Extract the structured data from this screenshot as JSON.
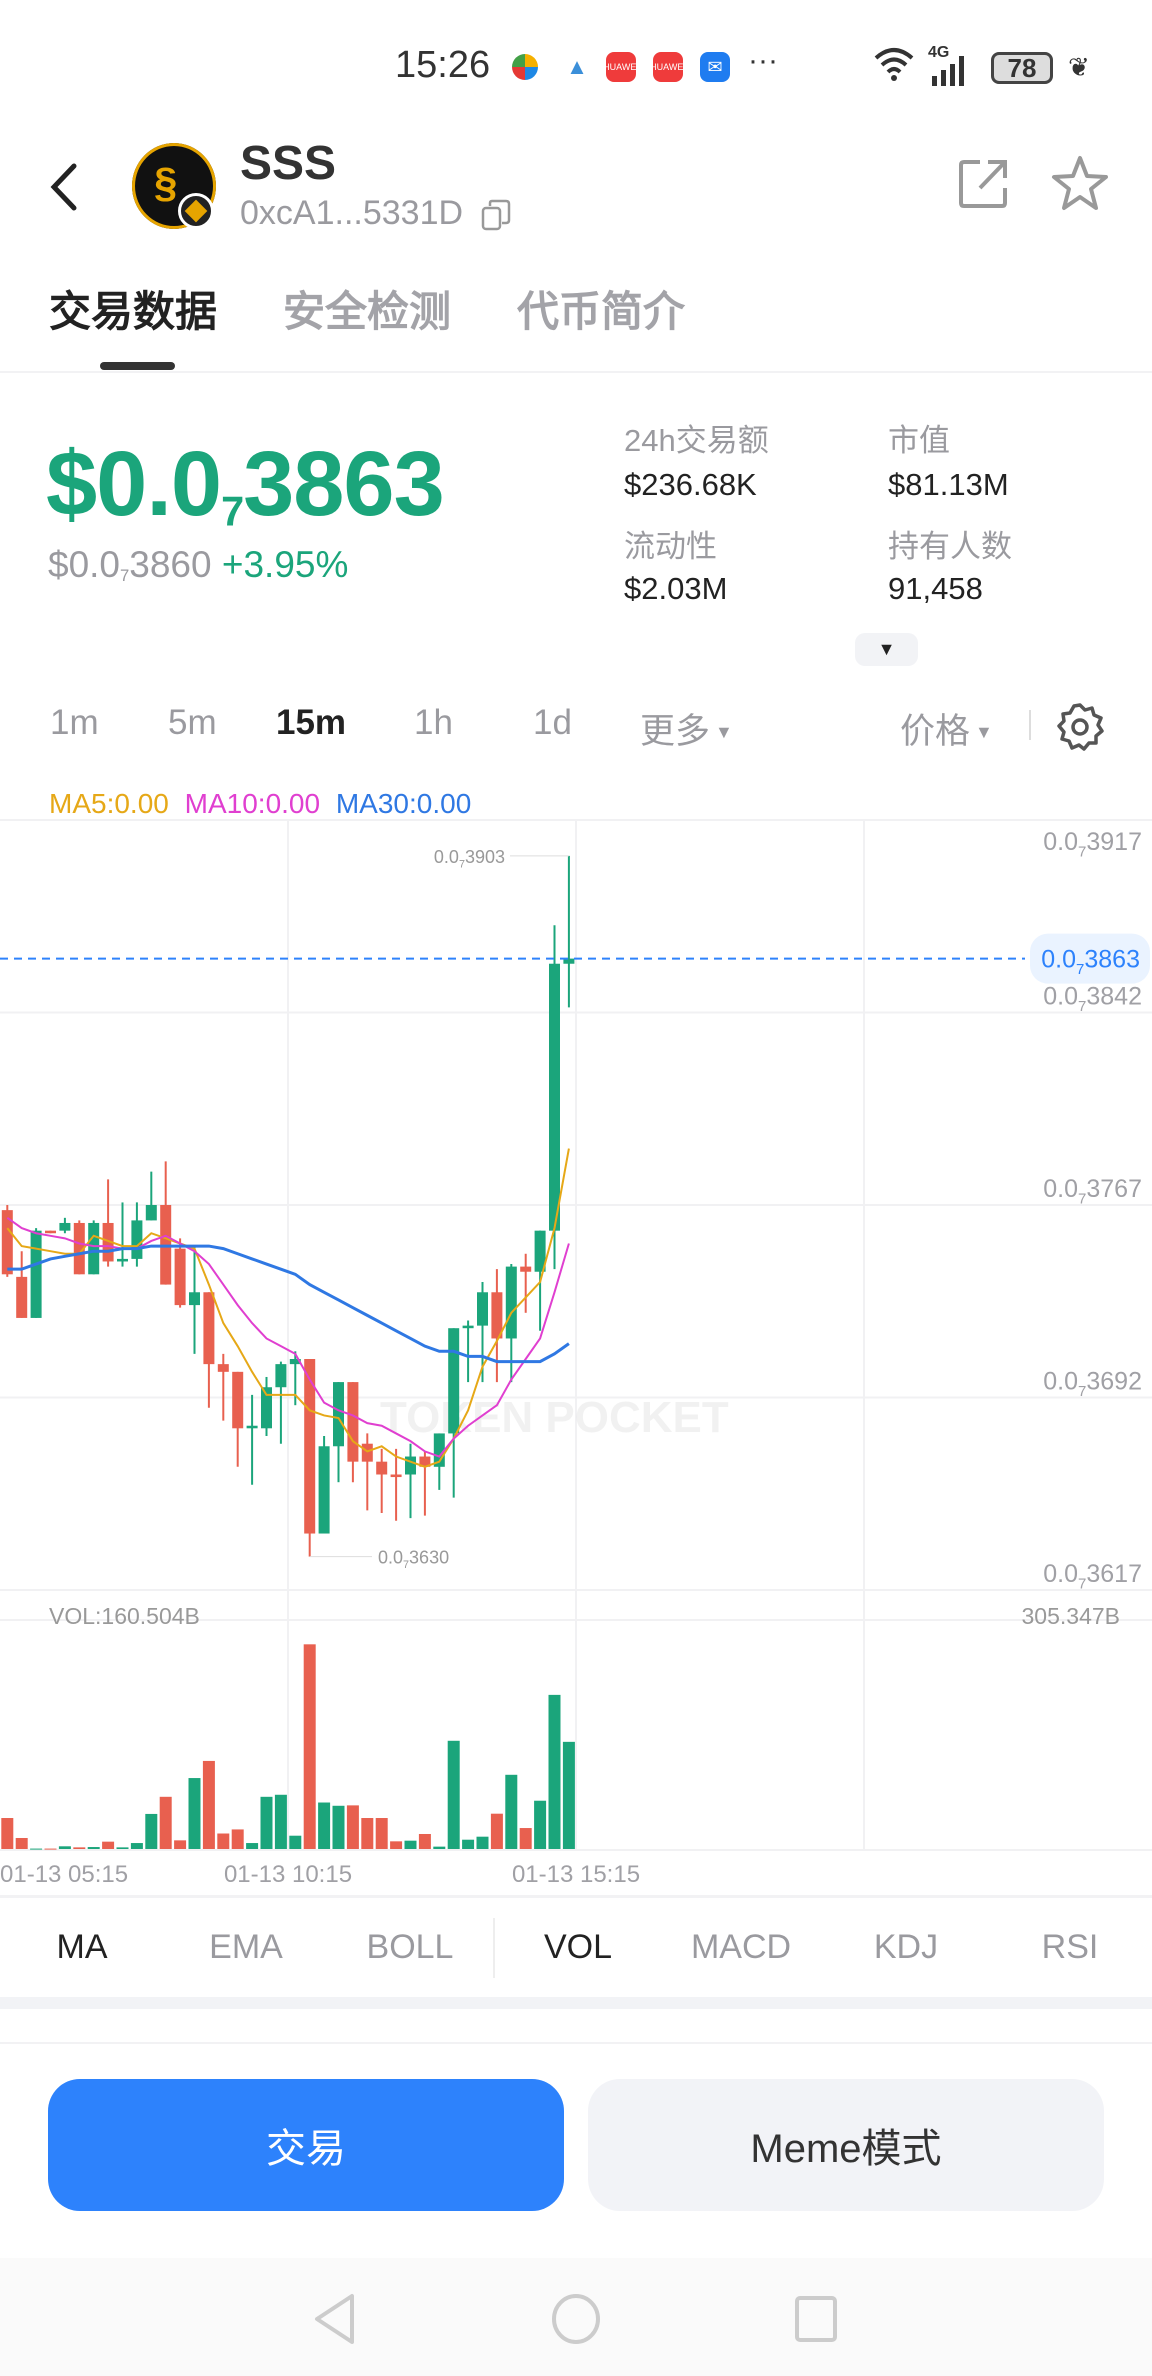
{
  "status_bar": {
    "time": "15:26",
    "network": "4G",
    "battery": "78",
    "more": "···",
    "notif_icons": [
      "multicolor-app-icon",
      "delta-app-icon",
      "huawei-appgallery-icon",
      "huawei-appgallery-icon",
      "mail-icon"
    ],
    "huawei_label": "HUAWEI"
  },
  "header": {
    "token_name": "SSS",
    "address": "0xcA1...5331D"
  },
  "tabs": [
    {
      "label": "交易数据",
      "active": true
    },
    {
      "label": "安全检测"
    },
    {
      "label": "代币简介"
    }
  ],
  "price": {
    "prefix": "$0.0",
    "zeros": "7",
    "digits": "3863",
    "ref_prefix": "$0.0",
    "ref_zeros": "7",
    "ref_digits": "3860",
    "change": "+3.95%"
  },
  "stats": [
    {
      "label": "24h交易额",
      "value": "$236.68K"
    },
    {
      "label": "市值",
      "value": "$81.13M"
    },
    {
      "label": "流动性",
      "value": "$2.03M"
    },
    {
      "label": "持有人数",
      "value": "91,458"
    }
  ],
  "intervals": [
    {
      "label": "1m"
    },
    {
      "label": "5m"
    },
    {
      "label": "15m",
      "active": true
    },
    {
      "label": "1h"
    },
    {
      "label": "1d"
    },
    {
      "label": "更多"
    }
  ],
  "price_mode": "价格",
  "ma_legend": {
    "ma5": "MA5:0.00",
    "ma10": "MA10:0.00",
    "ma30": "MA30:0.00"
  },
  "colors": {
    "up": "#1ba57b",
    "down": "#e8604f",
    "accent": "#2d82fc",
    "ma5": "#e6a817",
    "ma10": "#e03fd0",
    "ma30": "#2f78e3"
  },
  "chart_data": {
    "type": "candlestick",
    "ylim": [
      3.617e-08,
      3.917e-08
    ],
    "y_ticks": [
      {
        "value": 3.917e-08,
        "prefix": "0.0",
        "sub": "7",
        "digits": "3917"
      },
      {
        "value": 3.842e-08,
        "prefix": "0.0",
        "sub": "7",
        "digits": "3842"
      },
      {
        "value": 3.767e-08,
        "prefix": "0.0",
        "sub": "7",
        "digits": "3767"
      },
      {
        "value": 3.692e-08,
        "prefix": "0.0",
        "sub": "7",
        "digits": "3692"
      },
      {
        "value": 3.617e-08,
        "prefix": "0.0",
        "sub": "7",
        "digits": "3617"
      }
    ],
    "current_price": {
      "value": 3.863e-08,
      "prefix": "0.0",
      "sub": "7",
      "digits": "3863"
    },
    "high_label": {
      "value": 3.903e-08,
      "prefix": "0.0",
      "sub": "7",
      "digits": "3903"
    },
    "low_label": {
      "value": 3.63e-08,
      "prefix": "0.0",
      "sub": "7",
      "digits": "3630"
    },
    "x_labels": [
      "01-13 05:15",
      "01-13 10:15",
      "01-13 15:15"
    ],
    "candles_ohlc": [
      [
        3.765e-08,
        3.767e-08,
        3.739e-08,
        3.74e-08
      ],
      [
        3.739e-08,
        3.749e-08,
        3.723e-08,
        3.723e-08
      ],
      [
        3.723e-08,
        3.758e-08,
        3.723e-08,
        3.757e-08
      ],
      [
        3.757e-08,
        3.757e-08,
        3.756e-08,
        3.756e-08
      ],
      [
        3.757e-08,
        3.762e-08,
        3.756e-08,
        3.76e-08
      ],
      [
        3.76e-08,
        3.761e-08,
        3.74e-08,
        3.74e-08
      ],
      [
        3.74e-08,
        3.761e-08,
        3.74e-08,
        3.76e-08
      ],
      [
        3.76e-08,
        3.777e-08,
        3.743e-08,
        3.745e-08
      ],
      [
        3.745e-08,
        3.768e-08,
        3.743e-08,
        3.746e-08
      ],
      [
        3.746e-08,
        3.768e-08,
        3.743e-08,
        3.761e-08
      ],
      [
        3.761e-08,
        3.78e-08,
        3.761e-08,
        3.767e-08
      ],
      [
        3.767e-08,
        3.784e-08,
        3.736e-08,
        3.736e-08
      ],
      [
        3.75e-08,
        3.754e-08,
        3.727e-08,
        3.728e-08
      ],
      [
        3.728e-08,
        3.751e-08,
        3.709e-08,
        3.733e-08
      ],
      [
        3.733e-08,
        3.733e-08,
        3.688e-08,
        3.705e-08
      ],
      [
        3.705e-08,
        3.709e-08,
        3.683e-08,
        3.702e-08
      ],
      [
        3.702e-08,
        3.702e-08,
        3.665e-08,
        3.68e-08
      ],
      [
        3.68e-08,
        3.693e-08,
        3.658e-08,
        3.681e-08
      ],
      [
        3.68e-08,
        3.7e-08,
        3.677e-08,
        3.696e-08
      ],
      [
        3.696e-08,
        3.706e-08,
        3.674e-08,
        3.705e-08
      ],
      [
        3.705e-08,
        3.71e-08,
        3.689e-08,
        3.707e-08
      ],
      [
        3.707e-08,
        3.707e-08,
        3.63e-08,
        3.639e-08
      ],
      [
        3.639e-08,
        3.677e-08,
        3.639e-08,
        3.673e-08
      ],
      [
        3.673e-08,
        3.698e-08,
        3.659e-08,
        3.698e-08
      ],
      [
        3.698e-08,
        3.698e-08,
        3.659e-08,
        3.667e-08
      ],
      [
        3.674e-08,
        3.678e-08,
        3.648e-08,
        3.667e-08
      ],
      [
        3.667e-08,
        3.672e-08,
        3.647e-08,
        3.662e-08
      ],
      [
        3.662e-08,
        3.672e-08,
        3.644e-08,
        3.661e-08
      ],
      [
        3.662e-08,
        3.674e-08,
        3.645e-08,
        3.669e-08
      ],
      [
        3.669e-08,
        3.671e-08,
        3.646e-08,
        3.665e-08
      ],
      [
        3.665e-08,
        3.678e-08,
        3.656e-08,
        3.678e-08
      ],
      [
        3.678e-08,
        3.719e-08,
        3.653e-08,
        3.719e-08
      ],
      [
        3.719e-08,
        3.722e-08,
        3.698e-08,
        3.72e-08
      ],
      [
        3.72e-08,
        3.737e-08,
        3.698e-08,
        3.733e-08
      ],
      [
        3.733e-08,
        3.742e-08,
        3.698e-08,
        3.715e-08
      ],
      [
        3.715e-08,
        3.744e-08,
        3.698e-08,
        3.743e-08
      ],
      [
        3.743e-08,
        3.748e-08,
        3.725e-08,
        3.741e-08
      ],
      [
        3.741e-08,
        3.757e-08,
        3.718e-08,
        3.757e-08
      ],
      [
        3.757e-08,
        3.876e-08,
        3.742e-08,
        3.861e-08
      ],
      [
        3.861e-08,
        3.903e-08,
        3.844e-08,
        3.863e-08
      ]
    ],
    "ma5": [
      3.758e-08,
      3.751e-08,
      3.75e-08,
      3.749e-08,
      3.748e-08,
      3.748e-08,
      3.755e-08,
      3.753e-08,
      3.751e-08,
      3.751e-08,
      3.756e-08,
      3.754e-08,
      3.752e-08,
      3.75e-08,
      3.736e-08,
      3.721e-08,
      3.712e-08,
      3.702e-08,
      3.693e-08,
      3.693e-08,
      3.693e-08,
      3.687e-08,
      3.685e-08,
      3.684e-08,
      3.675e-08,
      3.671e-08,
      3.673e-08,
      3.669e-08,
      3.667e-08,
      3.665e-08,
      3.667e-08,
      3.676e-08,
      3.687e-08,
      3.704e-08,
      3.714e-08,
      3.725e-08,
      3.731e-08,
      3.737e-08,
      3.758e-08,
      3.789e-08
    ],
    "ma10": [
      3.762e-08,
      3.758e-08,
      3.756e-08,
      3.755e-08,
      3.754e-08,
      3.752e-08,
      3.751e-08,
      3.751e-08,
      3.75e-08,
      3.75e-08,
      3.753e-08,
      3.755e-08,
      3.752e-08,
      3.749e-08,
      3.744e-08,
      3.736e-08,
      3.728e-08,
      3.721e-08,
      3.715e-08,
      3.712e-08,
      3.709e-08,
      3.699e-08,
      3.69e-08,
      3.687e-08,
      3.685e-08,
      3.682e-08,
      3.681e-08,
      3.678e-08,
      3.675e-08,
      3.671e-08,
      3.669e-08,
      3.676e-08,
      3.681e-08,
      3.685e-08,
      3.689e-08,
      3.699e-08,
      3.707e-08,
      3.715e-08,
      3.733e-08,
      3.752e-08
    ],
    "ma30": [
      3.742e-08,
      3.742e-08,
      3.744e-08,
      3.746e-08,
      3.747e-08,
      3.748e-08,
      3.749e-08,
      3.749e-08,
      3.75e-08,
      3.75e-08,
      3.751e-08,
      3.751e-08,
      3.751e-08,
      3.751e-08,
      3.751e-08,
      3.75e-08,
      3.748e-08,
      3.746e-08,
      3.744e-08,
      3.742e-08,
      3.74e-08,
      3.736e-08,
      3.733e-08,
      3.73e-08,
      3.727e-08,
      3.724e-08,
      3.721e-08,
      3.718e-08,
      3.715e-08,
      3.712e-08,
      3.71e-08,
      3.71e-08,
      3.708e-08,
      3.708e-08,
      3.706e-08,
      3.706e-08,
      3.706e-08,
      3.706e-08,
      3.709e-08,
      3.713e-08
    ],
    "volume": {
      "label": "VOL:160.504B",
      "max_label": "305.347B",
      "ylim": [
        0,
        305.347
      ],
      "values": [
        38,
        13.5,
        0.5,
        0.5,
        3.3,
        2,
        2.4,
        9,
        2,
        7.3,
        43,
        64,
        10.6,
        87,
        108,
        19,
        24,
        7.3,
        64,
        66.5,
        16.3,
        251,
        57,
        53,
        53.5,
        38,
        38,
        9.4,
        10.2,
        18.4,
        2.9,
        132.7,
        11.4,
        15.1,
        43.3,
        91,
        25.7,
        59.2,
        189,
        131.4
      ]
    },
    "watermark": "TOKEN POCKET",
    "grid": true
  },
  "indicators": [
    {
      "label": "MA",
      "active": true
    },
    {
      "label": "EMA"
    },
    {
      "label": "BOLL"
    },
    {
      "label": "VOL",
      "active": true
    },
    {
      "label": "MACD"
    },
    {
      "label": "KDJ"
    },
    {
      "label": "RSI"
    }
  ],
  "actions": {
    "trade": "交易",
    "meme": "Meme模式"
  }
}
